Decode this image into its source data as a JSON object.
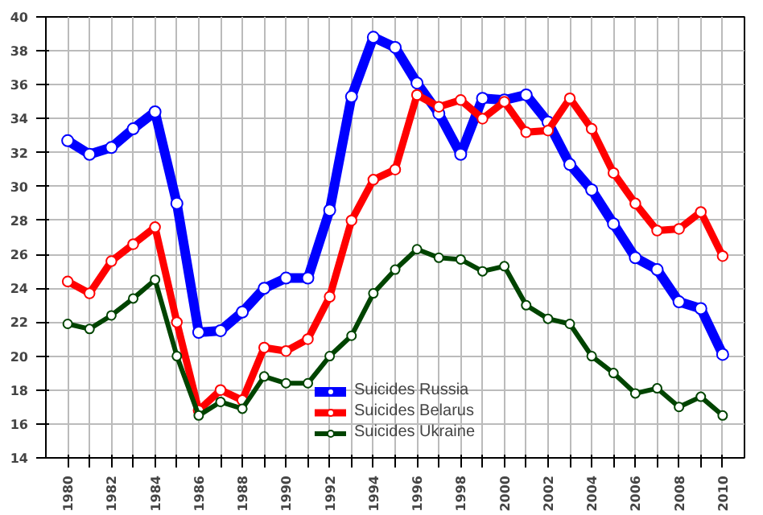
{
  "chart_data": {
    "type": "line",
    "x": [
      1980,
      1981,
      1982,
      1983,
      1984,
      1985,
      1986,
      1987,
      1988,
      1989,
      1990,
      1991,
      1992,
      1993,
      1994,
      1995,
      1996,
      1997,
      1998,
      1999,
      2000,
      2001,
      2002,
      2003,
      2004,
      2005,
      2006,
      2007,
      2008,
      2009,
      2010
    ],
    "series": [
      {
        "name": "Suicides Russia",
        "color": "#0000ff",
        "values": [
          32.7,
          31.9,
          32.3,
          33.4,
          34.4,
          29.0,
          21.4,
          21.5,
          22.6,
          24.0,
          24.6,
          24.6,
          28.6,
          35.3,
          38.8,
          38.2,
          36.1,
          34.3,
          31.9,
          35.2,
          35.1,
          35.4,
          33.8,
          31.3,
          29.8,
          27.8,
          25.8,
          25.1,
          23.2,
          22.8,
          20.1
        ]
      },
      {
        "name": "Suicides Belarus",
        "color": "#ff0000",
        "values": [
          24.4,
          23.7,
          25.6,
          26.6,
          27.6,
          22.0,
          16.8,
          18.0,
          17.4,
          20.5,
          20.3,
          21.0,
          23.5,
          28.0,
          30.4,
          31.0,
          35.4,
          34.7,
          35.1,
          34.0,
          35.0,
          33.2,
          33.3,
          35.2,
          33.4,
          30.8,
          29.0,
          27.4,
          27.5,
          28.5,
          25.9
        ]
      },
      {
        "name": "Suicides Ukraine",
        "color": "#004400",
        "values": [
          21.9,
          21.6,
          22.4,
          23.4,
          24.5,
          20.0,
          16.5,
          17.3,
          16.9,
          18.8,
          18.4,
          18.4,
          20.0,
          21.2,
          23.7,
          25.1,
          26.3,
          25.8,
          25.7,
          25.0,
          25.3,
          23.0,
          22.2,
          21.9,
          20.0,
          19.0,
          17.8,
          18.1,
          17.0,
          17.6,
          16.5
        ]
      }
    ],
    "xlim": [
      1979,
      2011
    ],
    "xticks": [
      1980,
      {
        "value": 1981,
        "label": null
      },
      1982,
      {
        "value": 1983,
        "label": null
      },
      1984,
      {
        "value": 1985,
        "label": null
      },
      1986,
      {
        "value": 1987,
        "label": null
      },
      1988,
      {
        "value": 1989,
        "label": null
      },
      1990,
      {
        "value": 1991,
        "label": null
      },
      1992,
      {
        "value": 1993,
        "label": null
      },
      1994,
      {
        "value": 1995,
        "label": null
      },
      1996,
      {
        "value": 1997,
        "label": null
      },
      1998,
      {
        "value": 1999,
        "label": null
      },
      2000,
      {
        "value": 2001,
        "label": null
      },
      2002,
      {
        "value": 2003,
        "label": null
      },
      2004,
      {
        "value": 2005,
        "label": null
      },
      2006,
      {
        "value": 2007,
        "label": null
      },
      2008,
      {
        "value": 2009,
        "label": null
      },
      2010
    ],
    "ylim": [
      14,
      40
    ],
    "yticks": [
      14,
      16,
      18,
      20,
      22,
      24,
      26,
      28,
      30,
      32,
      34,
      36,
      38,
      40
    ],
    "grid": true,
    "legend": "bottom",
    "marker": "circle",
    "line_style": "solid"
  }
}
